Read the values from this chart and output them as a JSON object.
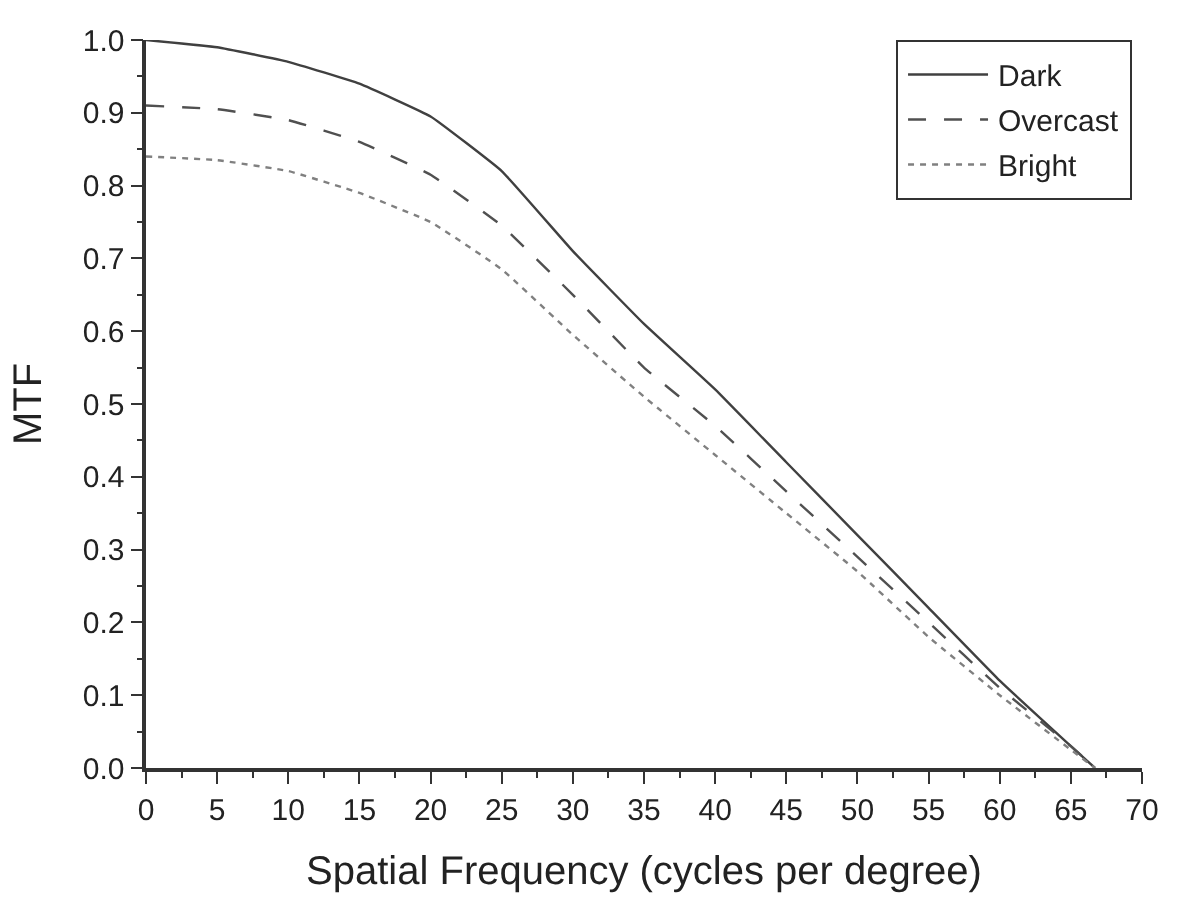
{
  "chart_data": {
    "type": "line",
    "xlabel": "Spatial Frequency (cycles per degree)",
    "ylabel": "MTF",
    "x": [
      0,
      5,
      10,
      15,
      20,
      25,
      30,
      35,
      40,
      45,
      50,
      55,
      60,
      65,
      66.7
    ],
    "series": [
      {
        "name": "Dark",
        "color": "#404040",
        "line_style": "solid",
        "values": [
          1.0,
          0.99,
          0.97,
          0.94,
          0.895,
          0.82,
          0.71,
          0.61,
          0.52,
          0.42,
          0.32,
          0.22,
          0.12,
          0.03,
          0.0
        ]
      },
      {
        "name": "Overcast",
        "color": "#505050",
        "line_style": "dashed",
        "values": [
          0.91,
          0.905,
          0.89,
          0.86,
          0.815,
          0.745,
          0.65,
          0.55,
          0.47,
          0.38,
          0.29,
          0.2,
          0.11,
          0.03,
          0.0
        ]
      },
      {
        "name": "Bright",
        "color": "#808080",
        "line_style": "dotted",
        "values": [
          0.84,
          0.835,
          0.82,
          0.79,
          0.75,
          0.685,
          0.595,
          0.51,
          0.43,
          0.35,
          0.27,
          0.18,
          0.1,
          0.025,
          0.0
        ]
      }
    ],
    "xlim": [
      0,
      70
    ],
    "xticks": [
      0,
      5,
      10,
      15,
      20,
      25,
      30,
      35,
      40,
      45,
      50,
      55,
      60,
      65,
      70
    ],
    "ylim": [
      0,
      1
    ],
    "yticks": [
      {
        "value": 0,
        "label": "0.0"
      },
      {
        "value": 0.1,
        "label": "0.1"
      },
      {
        "value": 0.2,
        "label": "0.2"
      },
      {
        "value": 0.3,
        "label": "0.3"
      },
      {
        "value": 0.4,
        "label": "0.4"
      },
      {
        "value": 0.5,
        "label": "0.5"
      },
      {
        "value": 0.6,
        "label": "0.6"
      },
      {
        "value": 0.7,
        "label": "0.7"
      },
      {
        "value": 0.8,
        "label": "0.8"
      },
      {
        "value": 0.9,
        "label": "0.9"
      },
      {
        "value": 1,
        "label": "1.0"
      }
    ],
    "grid": false,
    "legend": "top right",
    "marker": "none"
  }
}
